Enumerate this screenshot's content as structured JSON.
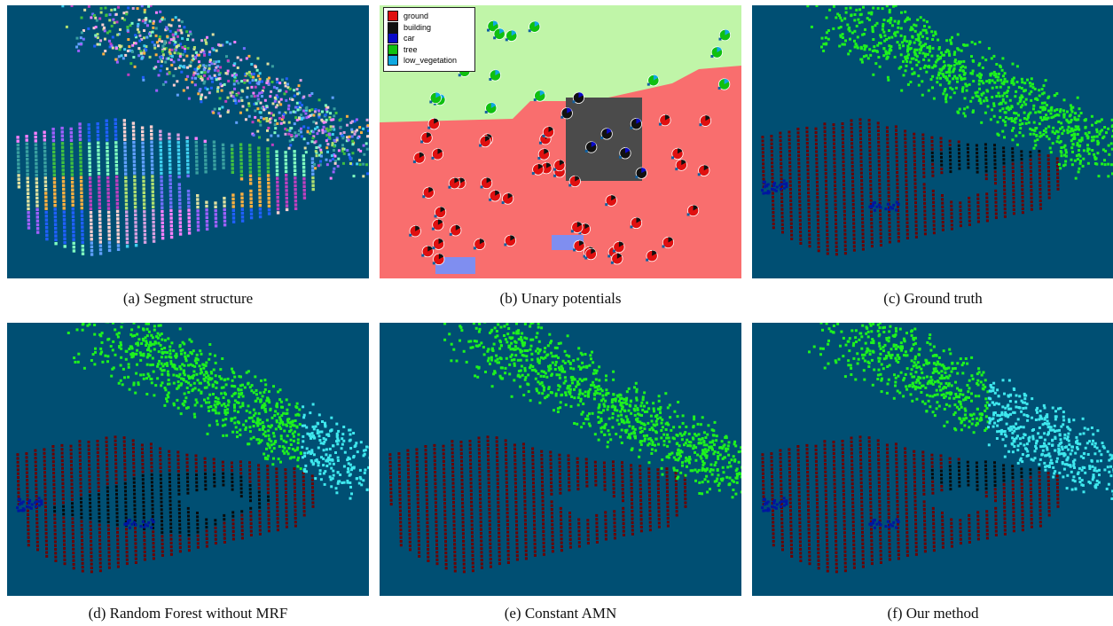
{
  "colors": {
    "background": "#004f73",
    "ground_point": "#6e0000",
    "building_point": "#0a0a0a",
    "car_point": "#0016a0",
    "tree_point": "#1ef21e",
    "low_vegetation_point": "#3fe8ee",
    "unary_ground_region": "#f96e6e",
    "unary_tree_region": "#c0f5a8",
    "unary_building_region": "#4b4b4b",
    "unary_car_region": "#7f8ef0"
  },
  "legend": {
    "items": [
      {
        "label": "ground",
        "color": "#e01010"
      },
      {
        "label": "building",
        "color": "#111111"
      },
      {
        "label": "car",
        "color": "#0a0ac8"
      },
      {
        "label": "tree",
        "color": "#10c010"
      },
      {
        "label": "low_vegetation",
        "color": "#10a8e0"
      }
    ]
  },
  "panels": [
    {
      "id": "a",
      "caption": "(a) Segment structure"
    },
    {
      "id": "b",
      "caption": "(b) Unary potentials"
    },
    {
      "id": "c",
      "caption": "(c) Ground truth"
    },
    {
      "id": "d",
      "caption": "(d) Random Forest without MRF"
    },
    {
      "id": "e",
      "caption": "(e) Constant AMN"
    },
    {
      "id": "f",
      "caption": "(f) Our method"
    }
  ]
}
